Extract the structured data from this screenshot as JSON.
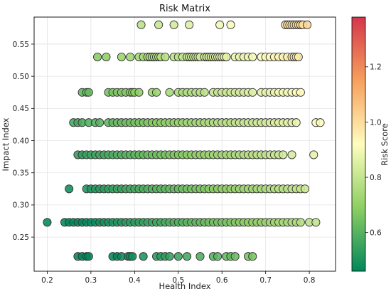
{
  "chart_data": {
    "type": "scatter",
    "title": "Risk Matrix",
    "xlabel": "Health Index",
    "ylabel": "Impact Index",
    "colorbar_label": "Risk Score",
    "xlim": [
      0.17,
      0.86
    ],
    "ylim": [
      0.197,
      0.592
    ],
    "x_ticks": [
      0.2,
      0.3,
      0.4,
      0.5,
      0.6,
      0.7,
      0.8
    ],
    "y_ticks": [
      0.25,
      0.3,
      0.35,
      0.4,
      0.45,
      0.5,
      0.55
    ],
    "colorbar_range": [
      0.46,
      1.38
    ],
    "colorbar_ticks": [
      0.6,
      0.8,
      1.0,
      1.2
    ],
    "colormap": "RdYlGn_r",
    "grid": true,
    "marker_edge_color": "#333333",
    "rows": [
      {
        "y": 0.58,
        "x": [
          0.415,
          0.455,
          0.49,
          0.525,
          0.595,
          0.62,
          0.745,
          0.75,
          0.755,
          0.76,
          0.765,
          0.77,
          0.775,
          0.78,
          0.78,
          0.785,
          0.795
        ]
      },
      {
        "y": 0.53,
        "x": [
          0.315,
          0.335,
          0.37,
          0.39,
          0.41,
          0.42,
          0.43,
          0.435,
          0.44,
          0.445,
          0.45,
          0.455,
          0.46,
          0.47,
          0.49,
          0.5,
          0.51,
          0.52,
          0.525,
          0.53,
          0.535,
          0.54,
          0.545,
          0.55,
          0.56,
          0.565,
          0.57,
          0.575,
          0.58,
          0.585,
          0.59,
          0.595,
          0.6,
          0.605,
          0.61,
          0.63,
          0.64,
          0.65,
          0.66,
          0.67,
          0.69,
          0.7,
          0.71,
          0.72,
          0.73,
          0.74,
          0.75,
          0.76,
          0.765,
          0.77,
          0.775
        ]
      },
      {
        "y": 0.475,
        "x": [
          0.28,
          0.29,
          0.295,
          0.34,
          0.35,
          0.36,
          0.37,
          0.38,
          0.39,
          0.395,
          0.4,
          0.41,
          0.44,
          0.45,
          0.48,
          0.5,
          0.51,
          0.52,
          0.53,
          0.54,
          0.55,
          0.56,
          0.58,
          0.59,
          0.6,
          0.61,
          0.62,
          0.63,
          0.64,
          0.65,
          0.66,
          0.67,
          0.69,
          0.7,
          0.71,
          0.72,
          0.73,
          0.74,
          0.75,
          0.76,
          0.77,
          0.78
        ]
      },
      {
        "y": 0.428,
        "x": [
          0.26,
          0.27,
          0.28,
          0.295,
          0.31,
          0.32,
          0.34,
          0.35,
          0.36,
          0.37,
          0.38,
          0.39,
          0.4,
          0.41,
          0.42,
          0.43,
          0.44,
          0.45,
          0.46,
          0.47,
          0.48,
          0.49,
          0.5,
          0.51,
          0.52,
          0.53,
          0.54,
          0.55,
          0.56,
          0.57,
          0.58,
          0.59,
          0.6,
          0.61,
          0.62,
          0.63,
          0.64,
          0.65,
          0.66,
          0.67,
          0.68,
          0.69,
          0.7,
          0.71,
          0.72,
          0.73,
          0.74,
          0.75,
          0.76,
          0.77,
          0.815,
          0.825
        ]
      },
      {
        "y": 0.378,
        "x": [
          0.27,
          0.28,
          0.29,
          0.3,
          0.31,
          0.32,
          0.33,
          0.34,
          0.35,
          0.36,
          0.37,
          0.38,
          0.39,
          0.4,
          0.41,
          0.42,
          0.43,
          0.44,
          0.45,
          0.46,
          0.47,
          0.48,
          0.49,
          0.5,
          0.51,
          0.52,
          0.53,
          0.54,
          0.55,
          0.56,
          0.57,
          0.58,
          0.59,
          0.6,
          0.61,
          0.62,
          0.63,
          0.64,
          0.65,
          0.66,
          0.67,
          0.68,
          0.69,
          0.7,
          0.71,
          0.72,
          0.73,
          0.74,
          0.76,
          0.81
        ]
      },
      {
        "y": 0.325,
        "x": [
          0.25,
          0.29,
          0.3,
          0.31,
          0.32,
          0.33,
          0.34,
          0.35,
          0.36,
          0.37,
          0.38,
          0.39,
          0.4,
          0.41,
          0.42,
          0.43,
          0.44,
          0.45,
          0.46,
          0.47,
          0.48,
          0.49,
          0.5,
          0.51,
          0.52,
          0.53,
          0.54,
          0.55,
          0.56,
          0.57,
          0.58,
          0.59,
          0.6,
          0.61,
          0.62,
          0.63,
          0.64,
          0.65,
          0.66,
          0.67,
          0.68,
          0.69,
          0.7,
          0.71,
          0.72,
          0.73,
          0.74,
          0.75,
          0.76,
          0.77,
          0.78,
          0.79
        ]
      },
      {
        "y": 0.273,
        "x": [
          0.2,
          0.24,
          0.25,
          0.26,
          0.27,
          0.28,
          0.29,
          0.3,
          0.31,
          0.32,
          0.33,
          0.34,
          0.35,
          0.36,
          0.37,
          0.38,
          0.39,
          0.4,
          0.41,
          0.42,
          0.43,
          0.44,
          0.45,
          0.46,
          0.47,
          0.48,
          0.49,
          0.5,
          0.51,
          0.52,
          0.53,
          0.54,
          0.55,
          0.56,
          0.57,
          0.58,
          0.59,
          0.6,
          0.61,
          0.62,
          0.63,
          0.64,
          0.65,
          0.66,
          0.67,
          0.68,
          0.69,
          0.7,
          0.71,
          0.72,
          0.73,
          0.74,
          0.75,
          0.76,
          0.77,
          0.78,
          0.8,
          0.815
        ]
      },
      {
        "y": 0.22,
        "x": [
          0.27,
          0.28,
          0.29,
          0.295,
          0.35,
          0.36,
          0.37,
          0.385,
          0.39,
          0.395,
          0.42,
          0.45,
          0.46,
          0.47,
          0.48,
          0.5,
          0.52,
          0.55,
          0.58,
          0.59,
          0.61,
          0.62,
          0.63,
          0.66,
          0.67
        ]
      }
    ]
  }
}
